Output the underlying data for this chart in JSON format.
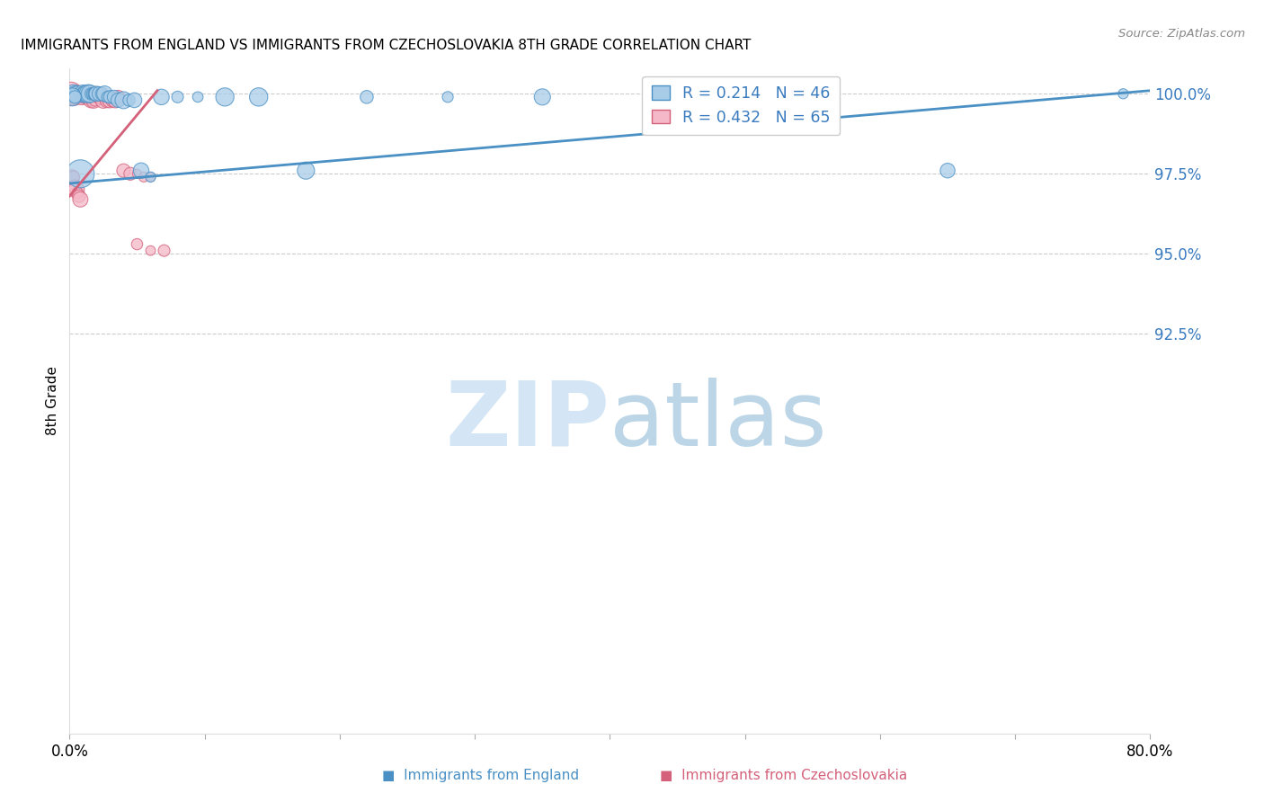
{
  "title": "IMMIGRANTS FROM ENGLAND VS IMMIGRANTS FROM CZECHOSLOVAKIA 8TH GRADE CORRELATION CHART",
  "source": "Source: ZipAtlas.com",
  "ylabel": "8th Grade",
  "xlim": [
    0.0,
    0.8
  ],
  "ylim": [
    0.8,
    1.008
  ],
  "yticks": [
    0.925,
    0.95,
    0.975,
    1.0
  ],
  "ytick_labels": [
    "92.5%",
    "95.0%",
    "97.5%",
    "100.0%"
  ],
  "xtick_positions": [
    0.0,
    0.1,
    0.2,
    0.3,
    0.4,
    0.5,
    0.6,
    0.7,
    0.8
  ],
  "xtick_labels": [
    "0.0%",
    "",
    "",
    "",
    "",
    "",
    "",
    "",
    "80.0%"
  ],
  "legend_R_blue": "0.214",
  "legend_N_blue": "46",
  "legend_R_pink": "0.432",
  "legend_N_pink": "65",
  "blue_fill": "#a8cce8",
  "blue_edge": "#4a90c4",
  "pink_fill": "#f4b8c8",
  "pink_edge": "#d4607a",
  "blue_line": "#4a90c4",
  "pink_line": "#d4607a",
  "eng_x": [
    0.001,
    0.003,
    0.005,
    0.006,
    0.007,
    0.008,
    0.009,
    0.01,
    0.011,
    0.012,
    0.013,
    0.014,
    0.015,
    0.016,
    0.017,
    0.018,
    0.019,
    0.02,
    0.022,
    0.024,
    0.026,
    0.028,
    0.03,
    0.033,
    0.036,
    0.04,
    0.044,
    0.048,
    0.053,
    0.06,
    0.068,
    0.08,
    0.095,
    0.115,
    0.14,
    0.175,
    0.22,
    0.28,
    0.35,
    0.43,
    0.52,
    0.65,
    0.78,
    0.002,
    0.004,
    0.008
  ],
  "eng_y": [
    1.0,
    1.0,
    1.0,
    1.0,
    1.0,
    1.0,
    1.0,
    1.0,
    1.0,
    1.0,
    1.0,
    1.0,
    1.0,
    1.0,
    1.0,
    1.0,
    1.0,
    1.0,
    1.0,
    1.0,
    1.0,
    0.999,
    0.999,
    0.999,
    0.998,
    0.998,
    0.998,
    0.998,
    0.976,
    0.974,
    0.999,
    0.999,
    0.999,
    0.999,
    0.999,
    0.976,
    0.999,
    0.999,
    0.999,
    0.999,
    0.999,
    0.976,
    1.0,
    0.999,
    0.999,
    0.975
  ],
  "eng_sizes": [
    80,
    80,
    80,
    80,
    80,
    80,
    80,
    80,
    80,
    80,
    80,
    80,
    80,
    80,
    80,
    80,
    80,
    80,
    80,
    80,
    80,
    80,
    80,
    80,
    80,
    80,
    80,
    80,
    80,
    80,
    80,
    80,
    80,
    80,
    80,
    80,
    80,
    80,
    80,
    80,
    80,
    80,
    80,
    80,
    80,
    400
  ],
  "cz_x": [
    0.001,
    0.002,
    0.002,
    0.003,
    0.003,
    0.004,
    0.004,
    0.005,
    0.005,
    0.006,
    0.006,
    0.007,
    0.007,
    0.008,
    0.008,
    0.009,
    0.009,
    0.01,
    0.01,
    0.011,
    0.011,
    0.012,
    0.012,
    0.013,
    0.013,
    0.014,
    0.014,
    0.015,
    0.015,
    0.016,
    0.016,
    0.017,
    0.017,
    0.018,
    0.018,
    0.019,
    0.019,
    0.02,
    0.021,
    0.022,
    0.023,
    0.024,
    0.025,
    0.026,
    0.027,
    0.028,
    0.03,
    0.032,
    0.034,
    0.036,
    0.04,
    0.045,
    0.05,
    0.055,
    0.06,
    0.002,
    0.003,
    0.004,
    0.005,
    0.006,
    0.007,
    0.008,
    0.05,
    0.06,
    0.07
  ],
  "cz_y": [
    1.0,
    1.0,
    0.999,
    1.0,
    0.999,
    1.0,
    0.999,
    1.0,
    0.999,
    1.0,
    0.999,
    1.0,
    0.999,
    1.0,
    0.999,
    1.0,
    0.999,
    1.0,
    0.999,
    1.0,
    0.999,
    1.0,
    0.999,
    1.0,
    0.999,
    1.0,
    0.999,
    1.0,
    0.999,
    1.0,
    0.998,
    1.0,
    0.998,
    1.0,
    0.998,
    1.0,
    0.998,
    1.0,
    0.999,
    0.999,
    0.999,
    0.999,
    0.998,
    0.999,
    0.998,
    0.998,
    0.998,
    0.998,
    0.998,
    0.999,
    0.976,
    0.975,
    0.975,
    0.974,
    0.974,
    0.974,
    0.974,
    0.971,
    0.97,
    0.969,
    0.968,
    0.967,
    0.953,
    0.951,
    0.951
  ],
  "cz_sizes": [
    80,
    80,
    80,
    80,
    80,
    80,
    80,
    80,
    80,
    80,
    80,
    80,
    80,
    80,
    80,
    80,
    80,
    80,
    80,
    80,
    80,
    80,
    80,
    80,
    80,
    80,
    80,
    80,
    80,
    80,
    80,
    80,
    80,
    80,
    80,
    80,
    80,
    80,
    80,
    80,
    80,
    80,
    80,
    80,
    80,
    80,
    80,
    80,
    80,
    80,
    80,
    80,
    80,
    80,
    80,
    80,
    80,
    80,
    80,
    80,
    80,
    80,
    80,
    80,
    80
  ],
  "blue_trend_x": [
    0.0,
    0.8
  ],
  "blue_trend_y": [
    0.972,
    1.001
  ],
  "pink_trend_x": [
    0.0,
    0.065
  ],
  "pink_trend_y": [
    0.968,
    1.001
  ],
  "watermark_zip_color": "#d0e4f4",
  "watermark_atlas_color": "#90bcd8"
}
